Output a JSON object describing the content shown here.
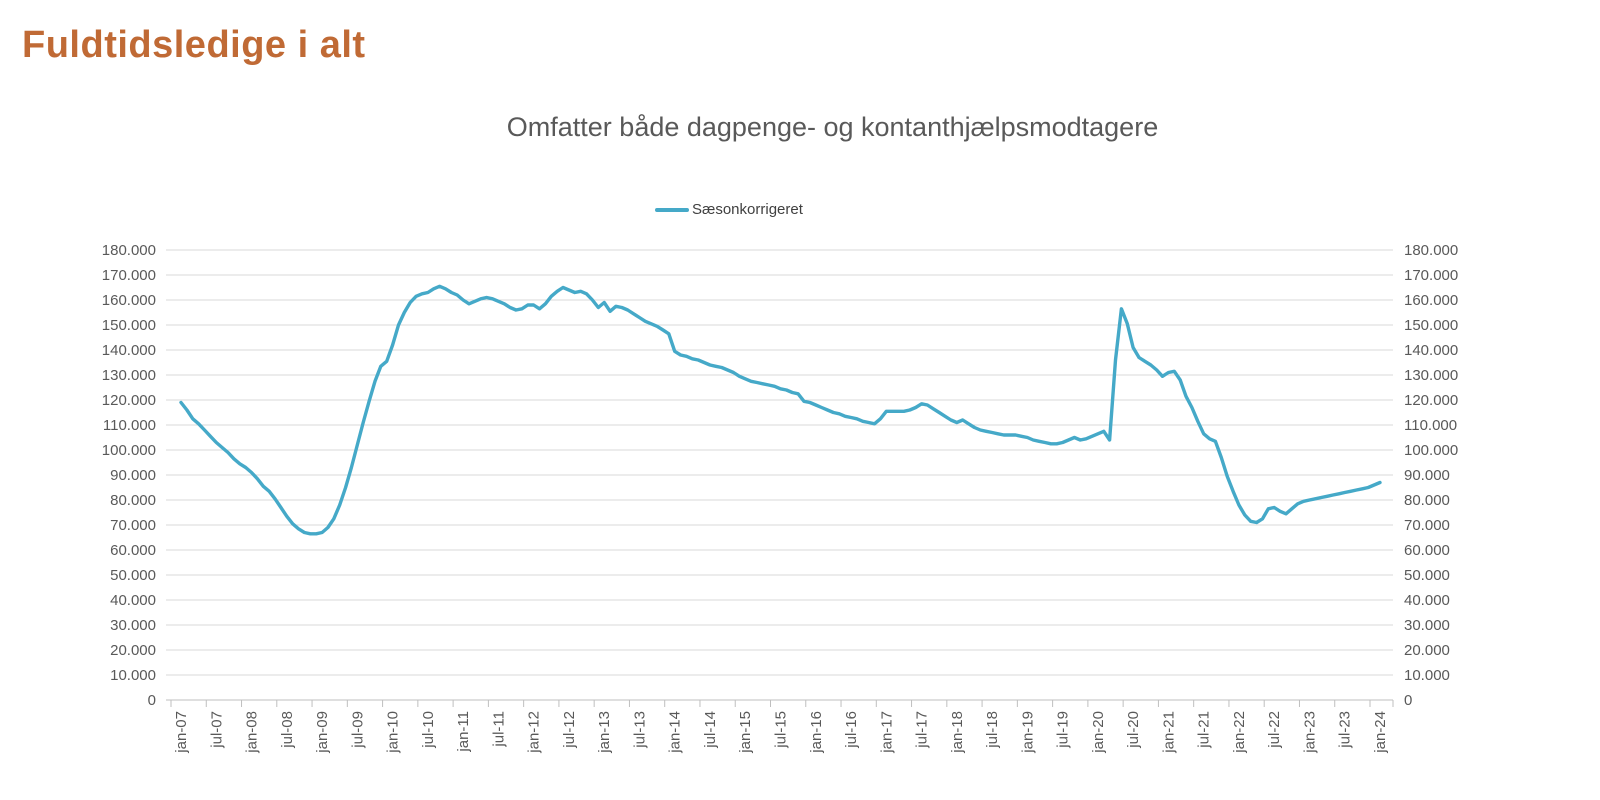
{
  "page": {
    "title": "Fuldtidsledige i alt"
  },
  "chart_data": {
    "type": "line",
    "title": "Omfatter både dagpenge- og kontanthjælpsmodtagere",
    "legend_position": "top-center",
    "grid": "horizontal",
    "colors": {
      "line": "#45a9c8",
      "grid": "#d9d9d9",
      "axis": "#bfbfbf",
      "text": "#595959",
      "title": "#c06a35"
    },
    "y_axis": {
      "min": 0,
      "max": 180000,
      "step": 10000,
      "sides": [
        "left",
        "right"
      ],
      "tick_labels_top_to_bottom": [
        "180.000",
        "170.000",
        "160.000",
        "150.000",
        "140.000",
        "130.000",
        "120.000",
        "110.000",
        "100.000",
        "90.000",
        "80.000",
        "70.000",
        "60.000",
        "50.000",
        "40.000",
        "30.000",
        "20.000",
        "10.000",
        "0"
      ]
    },
    "x_axis": {
      "tick_interval_months": 6,
      "label_rotation": -90,
      "tick_labels": [
        "jan-07",
        "jul-07",
        "jan-08",
        "jul-08",
        "jan-09",
        "jul-09",
        "jan-10",
        "jul-10",
        "jan-11",
        "jul-11",
        "jan-12",
        "jul-12",
        "jan-13",
        "jul-13",
        "jan-14",
        "jul-14",
        "jan-15",
        "jul-15",
        "jan-16",
        "jul-16",
        "jan-17",
        "jul-17",
        "jan-18",
        "jul-18",
        "jan-19",
        "jul-19",
        "jan-20",
        "jul-20",
        "jan-21",
        "jul-21",
        "jan-22",
        "jul-22",
        "jan-23",
        "jul-23",
        "jan-24"
      ]
    },
    "series": [
      {
        "name": "Sæsonkorrigeret",
        "color": "#45a9c8",
        "x_start": "jan-07",
        "x_step_months": 1,
        "values": [
          119000,
          116000,
          112500,
          110500,
          108000,
          105500,
          103000,
          101000,
          99000,
          96500,
          94500,
          93000,
          91000,
          88500,
          85500,
          83500,
          80500,
          77000,
          73500,
          70500,
          68500,
          67000,
          66500,
          66500,
          67000,
          69000,
          72500,
          78000,
          85000,
          93000,
          102000,
          111000,
          119500,
          127500,
          133500,
          135500,
          142000,
          150000,
          155000,
          159000,
          161500,
          162500,
          163000,
          164500,
          165500,
          164500,
          163000,
          162000,
          160000,
          158500,
          159500,
          160500,
          161000,
          160500,
          159500,
          158500,
          157000,
          156000,
          156500,
          158000,
          158000,
          156500,
          158500,
          161500,
          163500,
          165000,
          164000,
          163000,
          163500,
          162500,
          160000,
          157000,
          159000,
          155500,
          157500,
          157000,
          156000,
          154500,
          153000,
          151500,
          150500,
          149500,
          148000,
          146500,
          139500,
          138000,
          137500,
          136500,
          136000,
          135000,
          134000,
          133500,
          133000,
          132000,
          131000,
          129500,
          128500,
          127500,
          127000,
          126500,
          126000,
          125500,
          124500,
          124000,
          123000,
          122500,
          119500,
          119000,
          118000,
          117000,
          116000,
          115000,
          114500,
          113500,
          113000,
          112500,
          111500,
          111000,
          110500,
          112500,
          115500,
          115500,
          115500,
          115500,
          116000,
          117000,
          118500,
          118000,
          116500,
          115000,
          113500,
          112000,
          111000,
          112000,
          110500,
          109000,
          108000,
          107500,
          107000,
          106500,
          106000,
          106000,
          106000,
          105500,
          105000,
          104000,
          103500,
          103000,
          102500,
          102500,
          103000,
          104000,
          105000,
          104000,
          104500,
          105500,
          106500,
          107500,
          104000,
          136000,
          156500,
          150500,
          141000,
          137000,
          135500,
          134000,
          132000,
          129500,
          131000,
          131500,
          128000,
          121500,
          117000,
          111500,
          106500,
          104500,
          103500,
          97000,
          89500,
          83500,
          78000,
          74000,
          71500,
          71000,
          72500,
          76500,
          77000,
          75500,
          74500,
          76500,
          78500,
          79500,
          80000,
          80500,
          81000,
          81500,
          82000,
          82500,
          83000,
          83500,
          84000,
          84500,
          85000,
          86000,
          87000
        ]
      }
    ]
  }
}
